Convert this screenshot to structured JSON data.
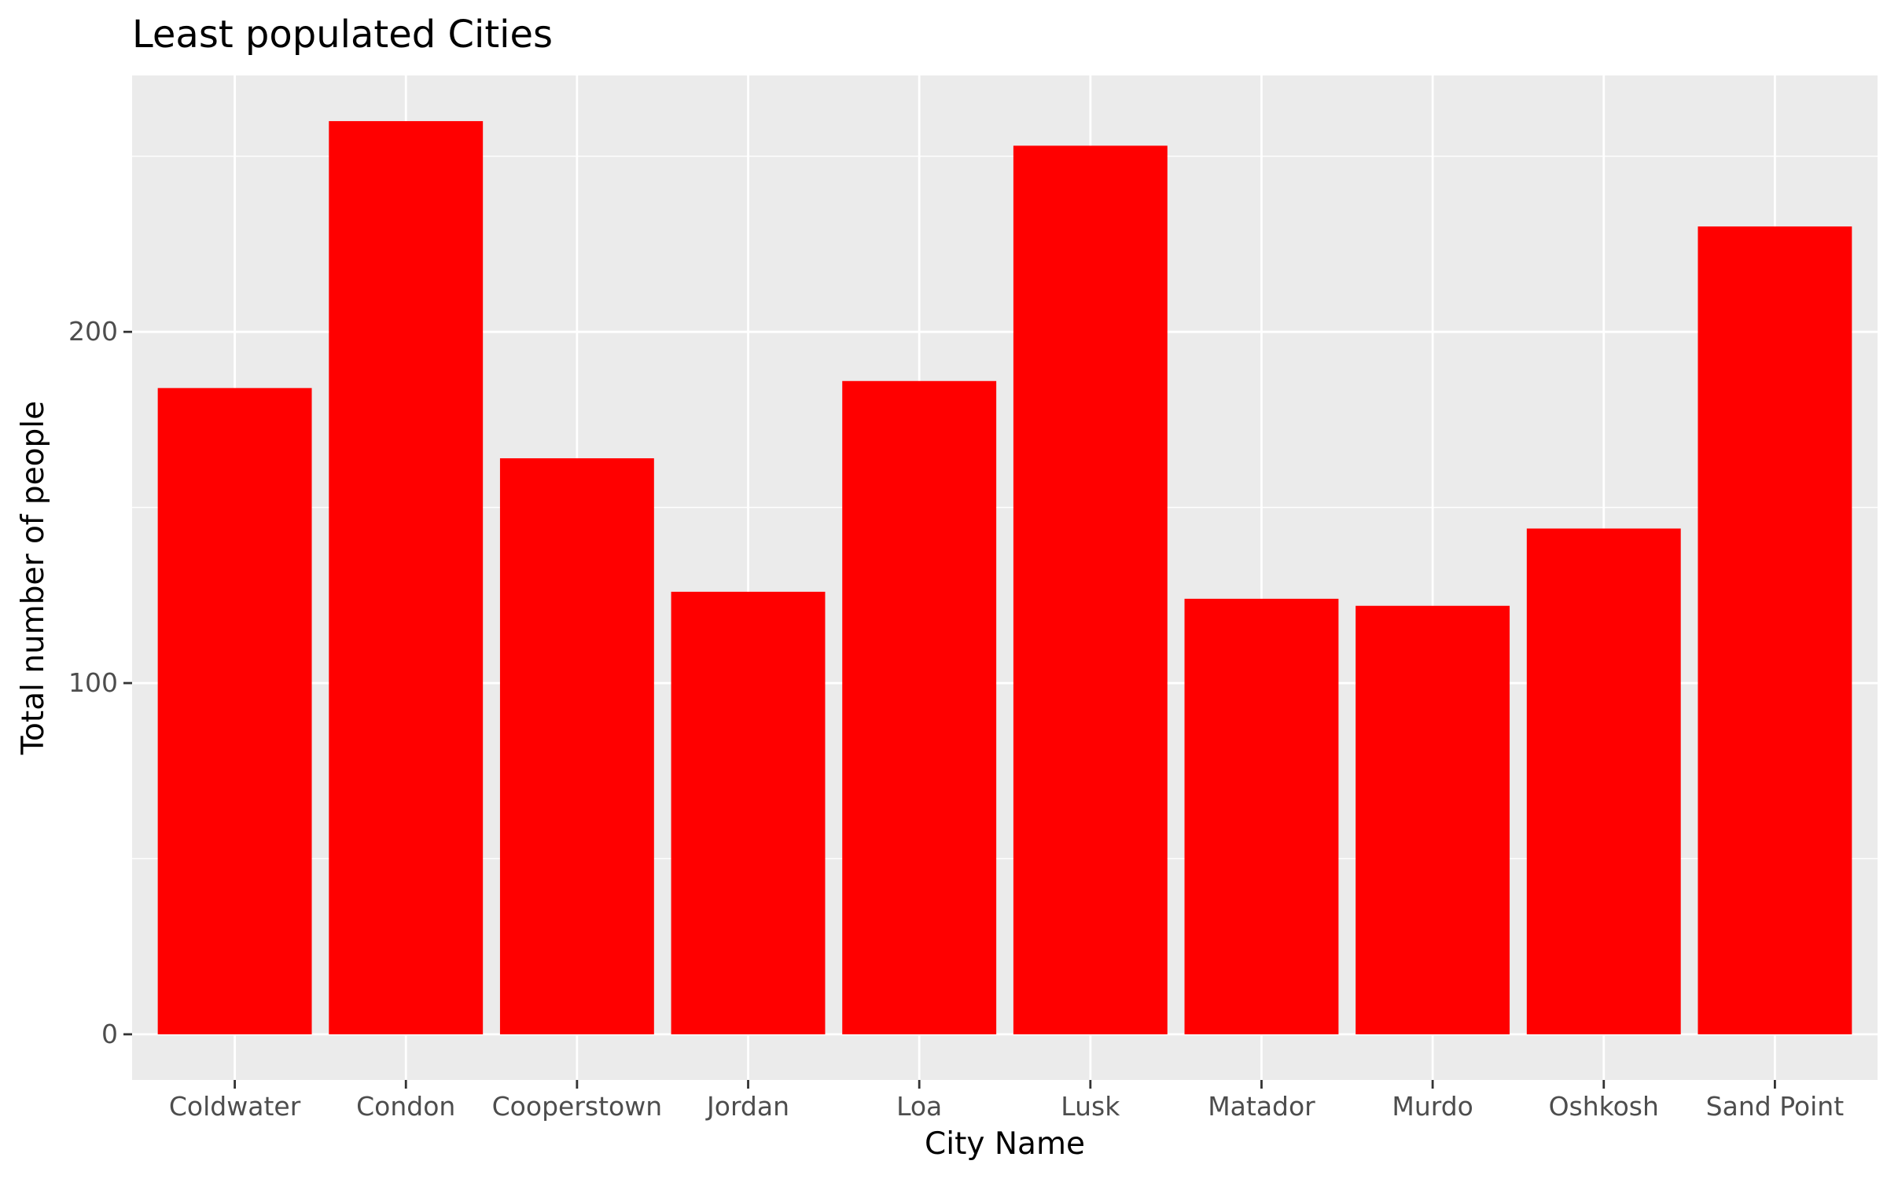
{
  "chart_data": {
    "type": "bar",
    "title": "Least populated Cities",
    "xlabel": "City Name",
    "ylabel": "Total number of people",
    "categories": [
      "Coldwater",
      "Condon",
      "Cooperstown",
      "Jordan",
      "Loa",
      "Lusk",
      "Matador",
      "Murdo",
      "Oshkosh",
      "Sand Point"
    ],
    "values": [
      184,
      260,
      164,
      126,
      186,
      253,
      124,
      122,
      144,
      230
    ],
    "ylim": [
      -13,
      273
    ],
    "yticks": [
      0,
      100,
      200
    ],
    "grid": true,
    "legend": "none",
    "colors": {
      "bar": "#ff0000",
      "panel": "#ebebeb",
      "grid": "#ffffff",
      "tick_text": "#4d4d4d"
    }
  }
}
